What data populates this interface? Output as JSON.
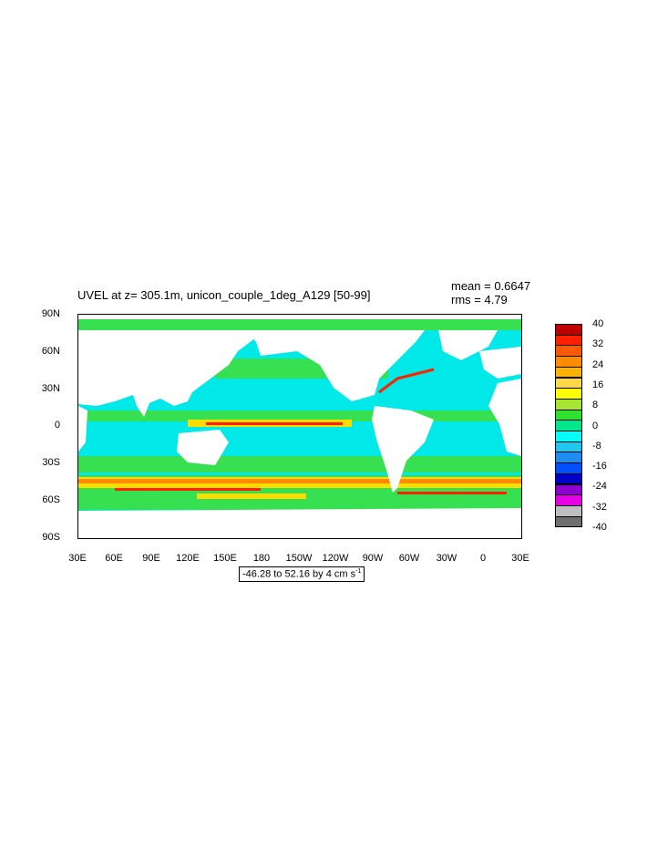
{
  "plot": {
    "title": "UVEL at z= 305.1m, unicon_couple_1deg_A129 [50-99]",
    "mean": "mean = 0.6647",
    "rms": "rms = 4.79",
    "range_label": "-46.28 to 52.16 by 4 cm s",
    "range_sup": "-1"
  },
  "axes": {
    "lat_ticks": [
      "90N",
      "60N",
      "30N",
      "0",
      "30S",
      "60S",
      "90S"
    ],
    "lon_ticks": [
      "30E",
      "60E",
      "90E",
      "120E",
      "150E",
      "180",
      "150W",
      "120W",
      "90W",
      "60W",
      "30W",
      "0",
      "30E"
    ]
  },
  "colorbar": {
    "labels": [
      "40",
      "32",
      "24",
      "16",
      "8",
      "0",
      "-8",
      "-16",
      "-24",
      "-32",
      "-40"
    ],
    "colors": [
      "#c00000",
      "#ff2000",
      "#ff5a00",
      "#ff8c00",
      "#ffb300",
      "#ffd84a",
      "#ffff00",
      "#a6e632",
      "#32e032",
      "#00e68c",
      "#00ffff",
      "#1ec8f0",
      "#1e8cf0",
      "#0050ff",
      "#0000c8",
      "#8c00d2",
      "#e600e6",
      "#bebebe",
      "#6e6e6e"
    ]
  },
  "legend_colors": {
    "ocean_base": "#00e8e8",
    "ocean_warm": "#37e050",
    "jet_core": "#ff2000",
    "jet_edge": "#ffdc00",
    "land": "#ffffff"
  }
}
